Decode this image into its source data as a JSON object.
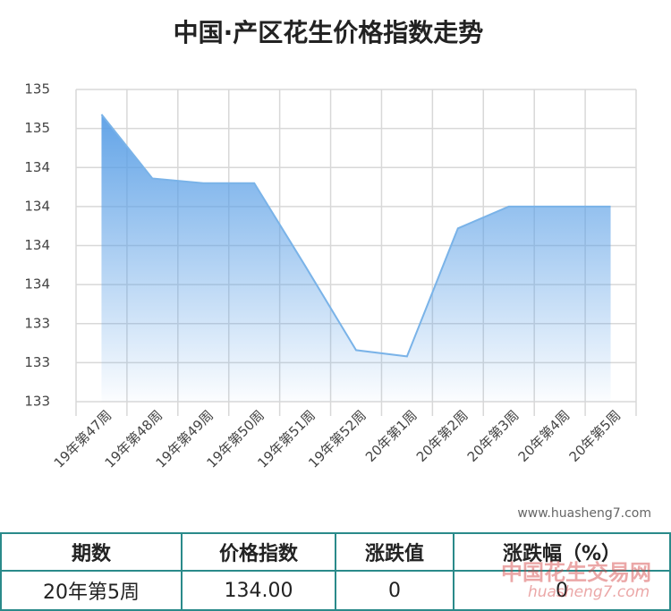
{
  "chart_data": {
    "type": "line",
    "title": "中国·产区花生价格指数走势",
    "categories": [
      "19年第47周",
      "19年第48周",
      "19年第49周",
      "19年第50周",
      "19年第51周",
      "19年第52周",
      "20年第1周",
      "20年第2周",
      "20年第3周",
      "20年第4周",
      "20年第5周"
    ],
    "series": [
      {
        "name": "价格指数",
        "color": "#7ab3e8",
        "values": [
          134.59,
          134.18,
          134.15,
          134.15,
          133.62,
          133.08,
          133.04,
          133.86,
          134.0,
          134.0,
          134.0
        ]
      }
    ],
    "ylim": [
      132.75,
      134.75
    ],
    "yticks": [
      {
        "value": 132.75,
        "label": "133"
      },
      {
        "value": 133.0,
        "label": "133"
      },
      {
        "value": 133.25,
        "label": "133"
      },
      {
        "value": 133.5,
        "label": "134"
      },
      {
        "value": 133.75,
        "label": "134"
      },
      {
        "value": 134.0,
        "label": "134"
      },
      {
        "value": 134.25,
        "label": "134"
      },
      {
        "value": 134.5,
        "label": "135"
      },
      {
        "value": 134.75,
        "label": "135"
      }
    ],
    "grid": true,
    "watermark": "www.huasheng7.com"
  },
  "table": {
    "header": [
      "期数",
      "价格指数",
      "涨跌值",
      "涨跌幅（%）"
    ],
    "rows": [
      [
        "20年第5周",
        "134.00",
        "0",
        "0"
      ]
    ]
  },
  "logo": {
    "name": "中国花生交易网",
    "url": "huasheng7.com"
  }
}
